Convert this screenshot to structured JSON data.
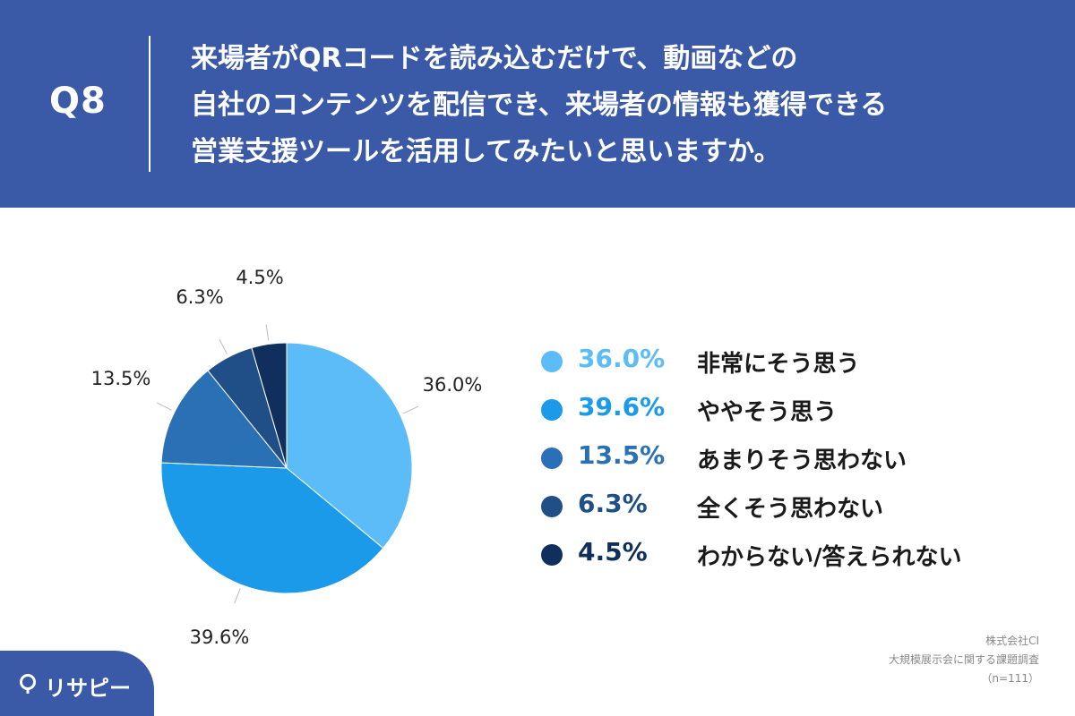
{
  "header": {
    "q_number": "Q8",
    "question_lines": [
      "来場者がQRコードを読み込むだけで、動画などの",
      "自社のコンテンツを配信でき、来場者の情報も獲得できる",
      "営業支援ツールを活用してみたいと思いますか。"
    ]
  },
  "colors": {
    "header_bg": "#3a5aa8",
    "panel_bg": "#ffffff",
    "slices": [
      "#5bbcf8",
      "#1a9ae8",
      "#2a70b5",
      "#1f4f86",
      "#112f5c"
    ]
  },
  "chart_data": {
    "type": "pie",
    "categories": [
      "非常にそう思う",
      "ややそう思う",
      "あまりそう思わない",
      "全くそう思わない",
      "わからない/答えられない"
    ],
    "values": [
      36.0,
      39.6,
      13.5,
      6.3,
      4.5
    ],
    "value_labels": [
      "36.0%",
      "39.6%",
      "13.5%",
      "6.3%",
      "4.5%"
    ],
    "legend_placement": "right"
  },
  "legend": {
    "items": [
      {
        "pct": "36.0%",
        "label": "非常にそう思う"
      },
      {
        "pct": "39.6%",
        "label": "ややそう思う"
      },
      {
        "pct": "13.5%",
        "label": "あまりそう思わない"
      },
      {
        "pct": "6.3%",
        "label": "全くそう思わない"
      },
      {
        "pct": "4.5%",
        "label": "わからない/答えられない"
      }
    ]
  },
  "source": {
    "company": "株式会社CI",
    "survey": "大規模展示会に関する課題調査",
    "sample": "（n=111）"
  },
  "logo": {
    "text": "リサピー",
    "icon": "location-pin-icon"
  }
}
